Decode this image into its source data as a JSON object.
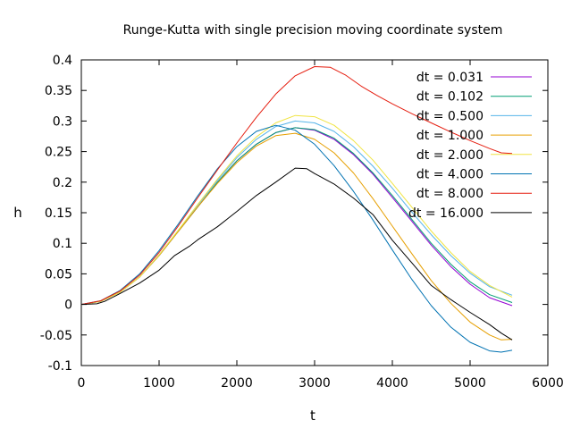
{
  "chart_data": {
    "type": "line",
    "title": "Runge-Kutta with single precision moving coordinate system",
    "xlabel": "t",
    "ylabel": "h",
    "xlim": [
      0,
      6000
    ],
    "ylim": [
      -0.1,
      0.4
    ],
    "xticks": [
      0,
      1000,
      2000,
      3000,
      4000,
      5000,
      6000
    ],
    "yticks": [
      -0.1,
      -0.05,
      0,
      0.05,
      0.1,
      0.15,
      0.2,
      0.25,
      0.3,
      0.35,
      0.4
    ],
    "xtick_labels": [
      "0",
      "1000",
      "2000",
      "3000",
      "4000",
      "5000",
      "6000"
    ],
    "ytick_labels": [
      "-0.1",
      "-0.05",
      "0",
      "0.05",
      "0.1",
      "0.15",
      "0.2",
      "0.25",
      "0.3",
      "0.35",
      "0.4"
    ],
    "grid": false,
    "legend_position": "top-right",
    "series": [
      {
        "name": "dt = 0.031",
        "color": "#9400d3",
        "points": [
          [
            0,
            0
          ],
          [
            250,
            0.005
          ],
          [
            500,
            0.02
          ],
          [
            750,
            0.045
          ],
          [
            1000,
            0.08
          ],
          [
            1250,
            0.12
          ],
          [
            1500,
            0.16
          ],
          [
            1750,
            0.2
          ],
          [
            2000,
            0.235
          ],
          [
            2250,
            0.262
          ],
          [
            2500,
            0.281
          ],
          [
            2750,
            0.289
          ],
          [
            3000,
            0.285
          ],
          [
            3250,
            0.27
          ],
          [
            3500,
            0.245
          ],
          [
            3750,
            0.213
          ],
          [
            4000,
            0.175
          ],
          [
            4250,
            0.136
          ],
          [
            4500,
            0.097
          ],
          [
            4750,
            0.062
          ],
          [
            5000,
            0.033
          ],
          [
            5250,
            0.011
          ],
          [
            5540,
            -0.002
          ]
        ]
      },
      {
        "name": "dt = 0.102",
        "color": "#009e73",
        "points": [
          [
            0,
            0
          ],
          [
            250,
            0.005
          ],
          [
            500,
            0.02
          ],
          [
            750,
            0.045
          ],
          [
            1000,
            0.08
          ],
          [
            1250,
            0.12
          ],
          [
            1500,
            0.16
          ],
          [
            1750,
            0.2
          ],
          [
            2000,
            0.235
          ],
          [
            2250,
            0.262
          ],
          [
            2500,
            0.281
          ],
          [
            2750,
            0.289
          ],
          [
            3000,
            0.286
          ],
          [
            3250,
            0.272
          ],
          [
            3500,
            0.247
          ],
          [
            3750,
            0.215
          ],
          [
            4000,
            0.178
          ],
          [
            4250,
            0.139
          ],
          [
            4500,
            0.1
          ],
          [
            4750,
            0.066
          ],
          [
            5000,
            0.037
          ],
          [
            5250,
            0.016
          ],
          [
            5540,
            0.003
          ]
        ]
      },
      {
        "name": "dt = 0.500",
        "color": "#56b4e9",
        "points": [
          [
            0,
            0
          ],
          [
            250,
            0.005
          ],
          [
            500,
            0.02
          ],
          [
            750,
            0.045
          ],
          [
            1000,
            0.081
          ],
          [
            1250,
            0.122
          ],
          [
            1500,
            0.163
          ],
          [
            1750,
            0.203
          ],
          [
            2000,
            0.24
          ],
          [
            2250,
            0.27
          ],
          [
            2500,
            0.291
          ],
          [
            2750,
            0.3
          ],
          [
            3000,
            0.297
          ],
          [
            3250,
            0.283
          ],
          [
            3500,
            0.258
          ],
          [
            3750,
            0.226
          ],
          [
            4000,
            0.19
          ],
          [
            4250,
            0.151
          ],
          [
            4500,
            0.114
          ],
          [
            4750,
            0.08
          ],
          [
            5000,
            0.051
          ],
          [
            5250,
            0.029
          ],
          [
            5540,
            0.015
          ]
        ]
      },
      {
        "name": "dt = 1.000",
        "color": "#e69f00",
        "points": [
          [
            0,
            0
          ],
          [
            250,
            0.005
          ],
          [
            500,
            0.02
          ],
          [
            750,
            0.045
          ],
          [
            1000,
            0.08
          ],
          [
            1250,
            0.12
          ],
          [
            1500,
            0.16
          ],
          [
            1750,
            0.198
          ],
          [
            2000,
            0.232
          ],
          [
            2250,
            0.259
          ],
          [
            2500,
            0.276
          ],
          [
            2750,
            0.28
          ],
          [
            3000,
            0.27
          ],
          [
            3250,
            0.248
          ],
          [
            3500,
            0.215
          ],
          [
            3750,
            0.173
          ],
          [
            4000,
            0.128
          ],
          [
            4250,
            0.083
          ],
          [
            4500,
            0.039
          ],
          [
            4750,
            0.002
          ],
          [
            5000,
            -0.029
          ],
          [
            5250,
            -0.05
          ],
          [
            5400,
            -0.058
          ],
          [
            5540,
            -0.057
          ]
        ]
      },
      {
        "name": "dt = 2.000",
        "color": "#f0e442",
        "points": [
          [
            0,
            0
          ],
          [
            250,
            0.005
          ],
          [
            500,
            0.02
          ],
          [
            750,
            0.045
          ],
          [
            1000,
            0.081
          ],
          [
            1250,
            0.122
          ],
          [
            1500,
            0.164
          ],
          [
            1750,
            0.205
          ],
          [
            2000,
            0.243
          ],
          [
            2250,
            0.274
          ],
          [
            2500,
            0.297
          ],
          [
            2750,
            0.309
          ],
          [
            3000,
            0.307
          ],
          [
            3250,
            0.293
          ],
          [
            3500,
            0.268
          ],
          [
            3750,
            0.236
          ],
          [
            4000,
            0.198
          ],
          [
            4250,
            0.159
          ],
          [
            4500,
            0.12
          ],
          [
            4750,
            0.085
          ],
          [
            5000,
            0.054
          ],
          [
            5250,
            0.031
          ],
          [
            5540,
            0.012
          ]
        ]
      },
      {
        "name": "dt = 4.000",
        "color": "#0072b2",
        "points": [
          [
            0,
            0
          ],
          [
            250,
            0.006
          ],
          [
            500,
            0.023
          ],
          [
            750,
            0.05
          ],
          [
            1000,
            0.088
          ],
          [
            1250,
            0.132
          ],
          [
            1500,
            0.178
          ],
          [
            1750,
            0.222
          ],
          [
            2000,
            0.258
          ],
          [
            2250,
            0.283
          ],
          [
            2500,
            0.293
          ],
          [
            2750,
            0.285
          ],
          [
            3000,
            0.262
          ],
          [
            3250,
            0.227
          ],
          [
            3500,
            0.185
          ],
          [
            3750,
            0.138
          ],
          [
            4000,
            0.089
          ],
          [
            4250,
            0.041
          ],
          [
            4500,
            -0.002
          ],
          [
            4750,
            -0.037
          ],
          [
            5000,
            -0.062
          ],
          [
            5250,
            -0.076
          ],
          [
            5400,
            -0.078
          ],
          [
            5540,
            -0.075
          ]
        ]
      },
      {
        "name": "dt = 8.000",
        "color": "#e51e10",
        "points": [
          [
            0,
            0
          ],
          [
            250,
            0.006
          ],
          [
            500,
            0.022
          ],
          [
            750,
            0.048
          ],
          [
            1000,
            0.085
          ],
          [
            1250,
            0.129
          ],
          [
            1500,
            0.175
          ],
          [
            1750,
            0.22
          ],
          [
            2000,
            0.264
          ],
          [
            2250,
            0.306
          ],
          [
            2500,
            0.344
          ],
          [
            2750,
            0.374
          ],
          [
            3000,
            0.389
          ],
          [
            3200,
            0.388
          ],
          [
            3400,
            0.375
          ],
          [
            3600,
            0.357
          ],
          [
            3800,
            0.342
          ],
          [
            4000,
            0.328
          ],
          [
            4250,
            0.312
          ],
          [
            4500,
            0.297
          ],
          [
            4750,
            0.282
          ],
          [
            5000,
            0.268
          ],
          [
            5250,
            0.255
          ],
          [
            5400,
            0.248
          ],
          [
            5540,
            0.247
          ]
        ]
      },
      {
        "name": "dt = 16.000",
        "color": "#000000",
        "points": [
          [
            0,
            0
          ],
          [
            200,
            0.001
          ],
          [
            300,
            0.005
          ],
          [
            500,
            0.018
          ],
          [
            750,
            0.035
          ],
          [
            1000,
            0.056
          ],
          [
            1100,
            0.068
          ],
          [
            1200,
            0.08
          ],
          [
            1300,
            0.088
          ],
          [
            1400,
            0.096
          ],
          [
            1500,
            0.106
          ],
          [
            1750,
            0.127
          ],
          [
            2000,
            0.152
          ],
          [
            2250,
            0.178
          ],
          [
            2500,
            0.2
          ],
          [
            2750,
            0.223
          ],
          [
            2900,
            0.222
          ],
          [
            3000,
            0.214
          ],
          [
            3250,
            0.197
          ],
          [
            3500,
            0.174
          ],
          [
            3750,
            0.147
          ],
          [
            4000,
            0.105
          ],
          [
            4250,
            0.068
          ],
          [
            4500,
            0.031
          ],
          [
            4750,
            0.008
          ],
          [
            5000,
            -0.013
          ],
          [
            5250,
            -0.033
          ],
          [
            5400,
            -0.047
          ],
          [
            5540,
            -0.058
          ]
        ]
      }
    ]
  }
}
